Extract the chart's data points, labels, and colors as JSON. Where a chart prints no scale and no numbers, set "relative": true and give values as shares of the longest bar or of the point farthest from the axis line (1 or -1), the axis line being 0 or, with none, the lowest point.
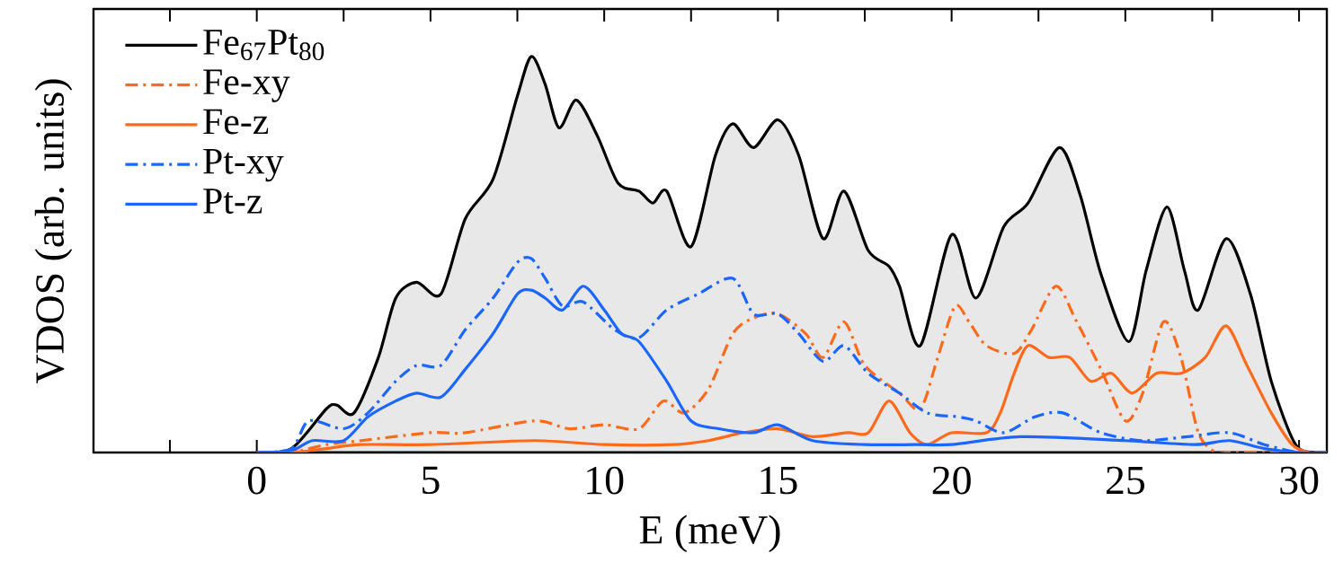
{
  "chart_data": {
    "type": "line",
    "xlabel": "E (meV)",
    "ylabel": "VDOS (arb. units)",
    "relative": true,
    "legend": "top left",
    "xlim": [
      -4.7,
      30.8
    ],
    "xticks": [
      {
        "value": -2.5,
        "label": null
      },
      0,
      {
        "value": 2.5,
        "label": null
      },
      5,
      {
        "value": 7.5,
        "label": null
      },
      10,
      {
        "value": 12.5,
        "label": null
      },
      15,
      {
        "value": 17.5,
        "label": null
      },
      20,
      {
        "value": 22.5,
        "label": null
      },
      25,
      {
        "value": 27.5,
        "label": null
      },
      30
    ],
    "series": [
      {
        "name": "Fe$_{67}$Pt$_{80}$",
        "type": "area",
        "color": "#000000",
        "line_style": "solid",
        "x": [
          0,
          1,
          2,
          2.3,
          2.8,
          3.5,
          4,
          4.6,
          5.3,
          6,
          6.8,
          7.5,
          7.9,
          8.3,
          8.7,
          9.2,
          9.8,
          10.4,
          11,
          11.4,
          11.8,
          12.5,
          13.2,
          13.7,
          14.3,
          15,
          15.6,
          16.3,
          16.9,
          17.6,
          18.2,
          18.5,
          19.1,
          20,
          20.7,
          21.5,
          22.2,
          23.1,
          23.7,
          24.3,
          25.1,
          25.6,
          26.2,
          26.7,
          27.1,
          27.9,
          28.6,
          29.2,
          29.9,
          30.5,
          30.8
        ],
        "values": [
          0,
          0.01,
          0.11,
          0.12,
          0.1,
          0.24,
          0.39,
          0.43,
          0.4,
          0.59,
          0.69,
          0.9,
          1.0,
          0.93,
          0.82,
          0.89,
          0.8,
          0.68,
          0.66,
          0.63,
          0.66,
          0.52,
          0.75,
          0.83,
          0.77,
          0.84,
          0.75,
          0.54,
          0.66,
          0.51,
          0.47,
          0.42,
          0.27,
          0.55,
          0.39,
          0.57,
          0.63,
          0.77,
          0.65,
          0.45,
          0.28,
          0.46,
          0.62,
          0.46,
          0.36,
          0.54,
          0.4,
          0.18,
          0.02,
          0,
          0
        ]
      },
      {
        "name": "Fe-xy",
        "color": "#ff6a1a",
        "line_style": "dashdot",
        "x": [
          0,
          1,
          2,
          3,
          5,
          6,
          8,
          9,
          10,
          11,
          11.7,
          12.3,
          13,
          13.7,
          14.3,
          15,
          15.8,
          16.3,
          16.9,
          17.5,
          18.5,
          19.1,
          19.6,
          20.1,
          20.5,
          21,
          21.8,
          22.3,
          23,
          23.6,
          24.3,
          25,
          25.5,
          26.1,
          26.6,
          27.1,
          27.6,
          28,
          29,
          30,
          30.8
        ],
        "values": [
          0,
          0,
          0.02,
          0.03,
          0.05,
          0.05,
          0.08,
          0.06,
          0.07,
          0.06,
          0.13,
          0.1,
          0.16,
          0.3,
          0.34,
          0.35,
          0.3,
          0.24,
          0.33,
          0.22,
          0.15,
          0.11,
          0.24,
          0.37,
          0.33,
          0.27,
          0.25,
          0.31,
          0.42,
          0.33,
          0.21,
          0.08,
          0.15,
          0.33,
          0.24,
          0.05,
          0,
          0,
          0,
          0,
          0
        ]
      },
      {
        "name": "Fe-z",
        "color": "#ff6a1a",
        "line_style": "solid",
        "x": [
          0,
          1,
          2,
          3,
          5,
          8,
          10,
          12,
          13,
          14,
          15,
          16,
          17,
          17.6,
          18.2,
          18.8,
          19.3,
          20,
          21,
          21.4,
          21.8,
          22.2,
          22.8,
          23.4,
          24,
          24.6,
          25.2,
          25.9,
          26.6,
          27.3,
          27.9,
          28.5,
          29.2,
          29.8,
          30.3,
          30.8
        ],
        "values": [
          0,
          0,
          0.01,
          0.02,
          0.02,
          0.03,
          0.02,
          0.02,
          0.03,
          0.05,
          0.06,
          0.04,
          0.05,
          0.05,
          0.13,
          0.05,
          0.02,
          0.05,
          0.05,
          0.1,
          0.2,
          0.27,
          0.24,
          0.24,
          0.18,
          0.2,
          0.15,
          0.2,
          0.2,
          0.24,
          0.32,
          0.22,
          0.1,
          0.02,
          0,
          0
        ]
      },
      {
        "name": "Pt-xy",
        "color": "#1a66ff",
        "line_style": "dashdot",
        "x": [
          0,
          1,
          1.5,
          2.5,
          3.2,
          4,
          4.6,
          5.3,
          6,
          6.8,
          7.5,
          7.9,
          8.3,
          8.8,
          9.4,
          10.3,
          11,
          11.8,
          12.7,
          13.7,
          14.3,
          15,
          15.6,
          16.3,
          16.9,
          17.6,
          18.5,
          19.3,
          20.2,
          20.7,
          21.5,
          22.4,
          23.2,
          24.3,
          25.5,
          26.8,
          28,
          29,
          30,
          30.8
        ],
        "values": [
          0,
          0.01,
          0.08,
          0.06,
          0.1,
          0.18,
          0.22,
          0.22,
          0.31,
          0.39,
          0.48,
          0.49,
          0.44,
          0.37,
          0.38,
          0.31,
          0.29,
          0.36,
          0.4,
          0.44,
          0.35,
          0.35,
          0.3,
          0.23,
          0.27,
          0.2,
          0.15,
          0.1,
          0.09,
          0.08,
          0.05,
          0.09,
          0.1,
          0.05,
          0.03,
          0.04,
          0.05,
          0.02,
          0,
          0
        ]
      },
      {
        "name": "Pt-z",
        "color": "#1a66ff",
        "line_style": "solid",
        "x": [
          0,
          1,
          1.6,
          2.5,
          3.2,
          4,
          4.6,
          5.3,
          6,
          6.8,
          7.5,
          7.9,
          8.3,
          8.8,
          9.4,
          10,
          10.5,
          11,
          11.8,
          12.5,
          13.3,
          14.3,
          15,
          16,
          17.5,
          19,
          20,
          22,
          25,
          27,
          28,
          29,
          30,
          30.8
        ],
        "values": [
          0,
          0.005,
          0.03,
          0.03,
          0.09,
          0.13,
          0.15,
          0.14,
          0.21,
          0.3,
          0.4,
          0.41,
          0.39,
          0.36,
          0.42,
          0.36,
          0.3,
          0.28,
          0.18,
          0.08,
          0.06,
          0.05,
          0.07,
          0.03,
          0.02,
          0.02,
          0.02,
          0.04,
          0.03,
          0.02,
          0.03,
          0.01,
          0,
          0
        ]
      }
    ]
  }
}
